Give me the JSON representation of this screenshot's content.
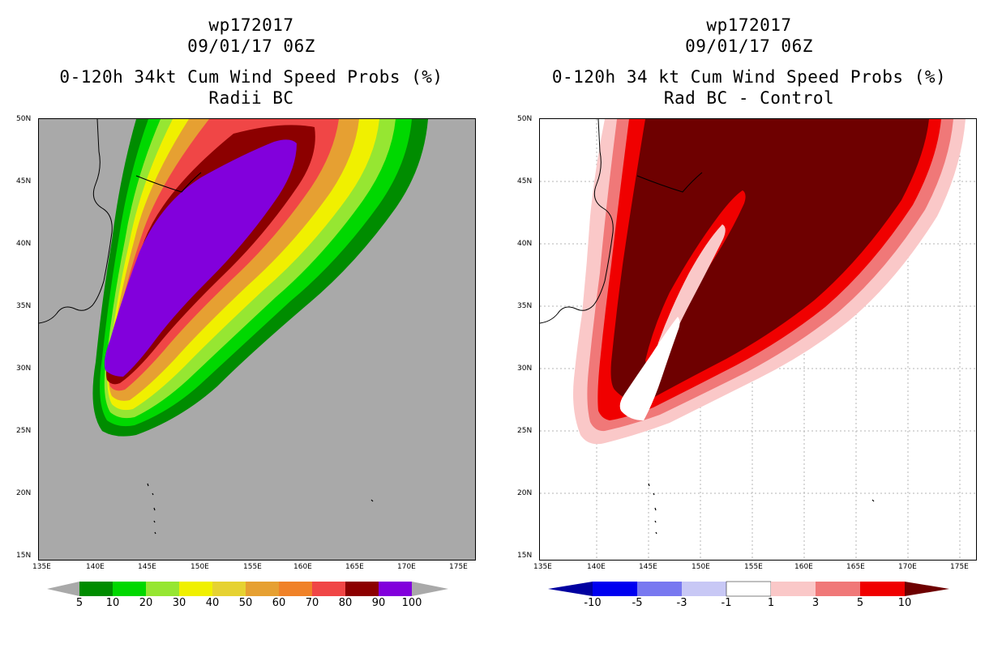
{
  "left_panel": {
    "title_line1": "wp172017",
    "title_line2": "09/01/17 06Z",
    "title_line3": "0-120h 34kt Cum Wind Speed Probs (%)",
    "title_line4": "Radii BC",
    "lat_labels": [
      "50N",
      "45N",
      "40N",
      "35N",
      "30N",
      "25N",
      "20N",
      "15N"
    ],
    "lon_labels": [
      "135E",
      "140E",
      "145E",
      "150E",
      "155E",
      "160E",
      "165E",
      "170E",
      "175E"
    ],
    "colorbar_labels": [
      "5",
      "10",
      "20",
      "30",
      "40",
      "50",
      "60",
      "70",
      "80",
      "90",
      "100"
    ],
    "colorbar_colors": [
      "#008c00",
      "#00d800",
      "#96e632",
      "#f0f000",
      "#e6d232",
      "#e6a032",
      "#f08228",
      "#f04646",
      "#8c0000",
      "#8200dc"
    ],
    "background_color": "#a9a9a9"
  },
  "right_panel": {
    "title_line1": "wp172017",
    "title_line2": "09/01/17 06Z",
    "title_line3": "0-120h 34 kt Cum Wind Speed Probs (%)",
    "title_line4": "Rad BC - Control",
    "lat_labels": [
      "50N",
      "45N",
      "40N",
      "35N",
      "30N",
      "25N",
      "20N",
      "15N"
    ],
    "lon_labels": [
      "135E",
      "140E",
      "145E",
      "150E",
      "155E",
      "160E",
      "165E",
      "170E",
      "175E"
    ],
    "colorbar_labels": [
      "-10",
      "-5",
      "-3",
      "-1",
      "1",
      "3",
      "5",
      "10"
    ],
    "colorbar_colors": [
      "#0000a0",
      "#0000f0",
      "#7878f0",
      "#c8c8f5",
      "#ffffff",
      "#fac8c8",
      "#f07878",
      "#f00000",
      "#6e0000"
    ]
  }
}
